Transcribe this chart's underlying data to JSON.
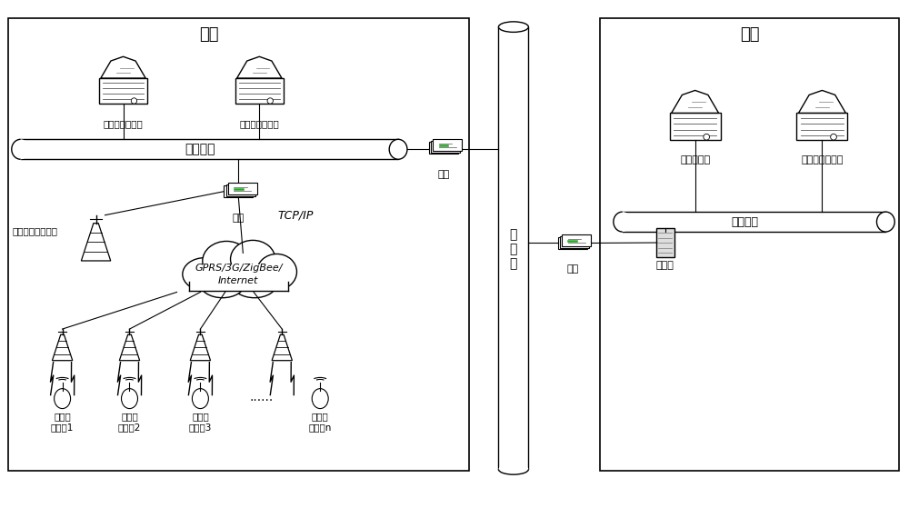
{
  "bg_color": "#ffffff",
  "line_color": "#000000",
  "text_color": "#000000",
  "enterprise_label": "企业",
  "bank_label": "银行",
  "wireless_server_label": "无线采集服务器",
  "local_monitor_label": "本地监控服务器",
  "enterprise_net_label": "企业内网",
  "router_label": "路由",
  "remote_base_label": "远程无线接收基站",
  "tcpip_label": "TCP/IP",
  "cloud_label": "GPRS/3G/ZigBee/\nInternet",
  "internet_label": "互\n联\n网",
  "bank_front_label": "银行前置机",
  "credit_server_label": "信贷管理服务器",
  "bank_net_label": "银行内网",
  "firewall_label": "防火墙",
  "stations": [
    "无线监\n测基站1",
    "无线监\n测基站2",
    "无线监\n测基站3",
    "无线监\n测基站n"
  ],
  "dots_label": "......",
  "fig_width": 10.0,
  "fig_height": 5.59
}
